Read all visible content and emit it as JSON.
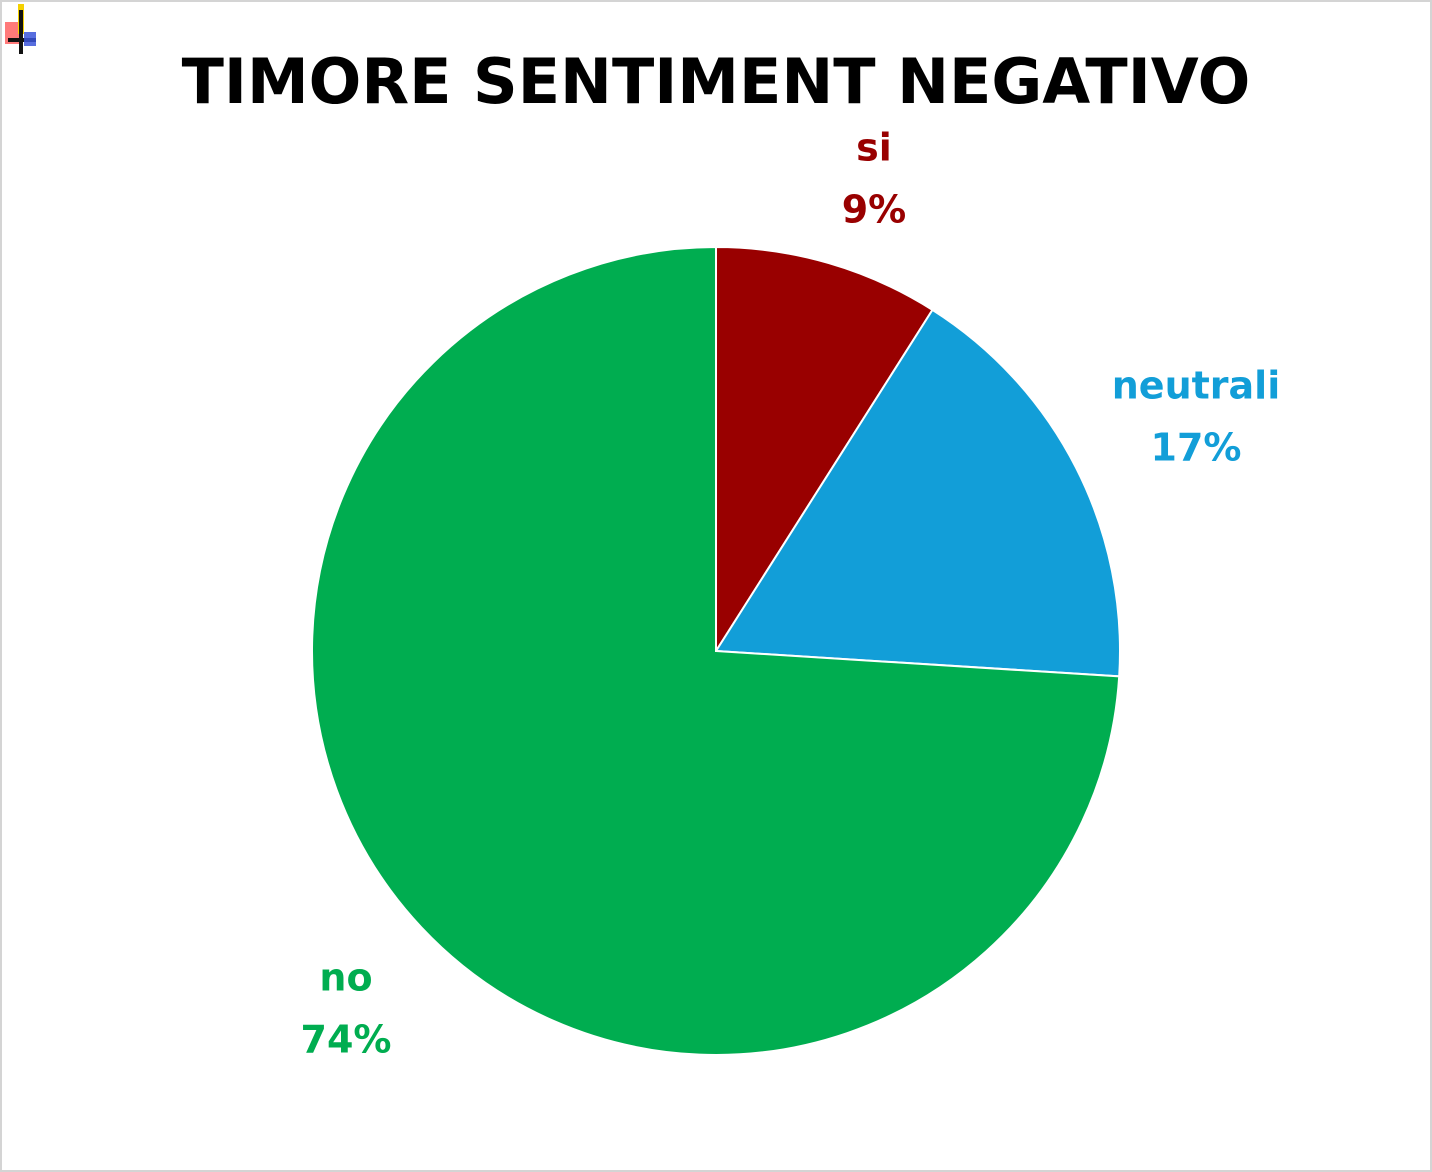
{
  "chart_data": {
    "type": "pie",
    "title": "TIMORE SENTIMENT NEGATIVO",
    "slices": [
      {
        "label": "si",
        "value": 9,
        "value_label": "9%",
        "color": "#990000"
      },
      {
        "label": "neutrali",
        "value": 17,
        "value_label": "17%",
        "color": "#129ed8"
      },
      {
        "label": "no",
        "value": 74,
        "value_label": "74%",
        "color": "#00ad50"
      }
    ],
    "start_angle": "12 o'clock",
    "direction": "clockwise",
    "legend": "none",
    "data_labels": "category and percentage, outside end"
  },
  "colors": {
    "title": "#000000",
    "background": "#ffffff",
    "border": "#d4d4d4"
  },
  "icons": {
    "corner": "move-cursor-icon"
  }
}
